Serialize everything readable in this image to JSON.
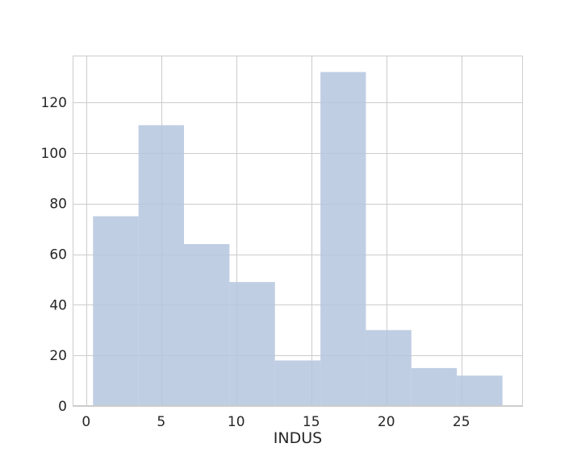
{
  "chart_data": {
    "type": "bar",
    "title": "",
    "xlabel": "INDUS",
    "ylabel": "",
    "bins": [
      {
        "x0": 0.46,
        "x1": 3.49,
        "count": 75
      },
      {
        "x0": 3.49,
        "x1": 6.52,
        "count": 111
      },
      {
        "x0": 6.52,
        "x1": 9.55,
        "count": 64
      },
      {
        "x0": 9.55,
        "x1": 12.58,
        "count": 49
      },
      {
        "x0": 12.58,
        "x1": 15.61,
        "count": 18
      },
      {
        "x0": 15.61,
        "x1": 18.64,
        "count": 132
      },
      {
        "x0": 18.64,
        "x1": 21.67,
        "count": 30
      },
      {
        "x0": 21.67,
        "x1": 24.7,
        "count": 15
      },
      {
        "x0": 24.7,
        "x1": 27.74,
        "count": 12
      }
    ],
    "xlim": [
      -0.9,
      29.1
    ],
    "ylim": [
      0,
      138.5
    ],
    "xticks": [
      0,
      5,
      10,
      15,
      20,
      25
    ],
    "yticks": [
      0,
      20,
      40,
      60,
      80,
      100,
      120
    ],
    "grid": true,
    "bar_color": "#b5c5de",
    "grid_color": "#cccccc"
  }
}
